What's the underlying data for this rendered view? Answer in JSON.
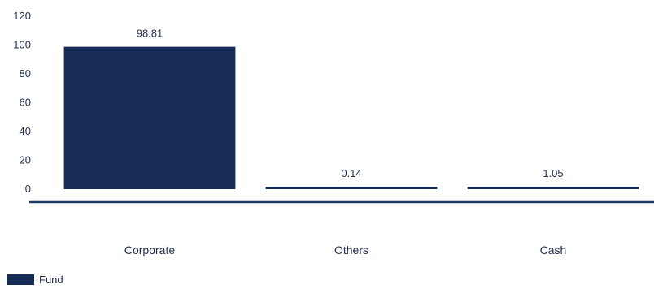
{
  "chart_data": {
    "type": "bar",
    "categories": [
      "Corporate",
      "Others",
      "Cash"
    ],
    "series": [
      {
        "name": "Fund",
        "values": [
          98.81,
          0.14,
          1.05
        ],
        "color": "#162c54"
      }
    ],
    "data_labels": [
      "98.81",
      "0.14",
      "1.05"
    ],
    "ylim": [
      0,
      120
    ],
    "yticks": [
      "0",
      "20",
      "40",
      "60",
      "80",
      "100",
      "120"
    ],
    "grid": false,
    "legend_position": "bottom-left",
    "title": "",
    "xlabel": "",
    "ylabel": ""
  },
  "colors": {
    "bar": "#162c54",
    "axis_line": "#1f3a66",
    "text": "#1f2d4d"
  }
}
